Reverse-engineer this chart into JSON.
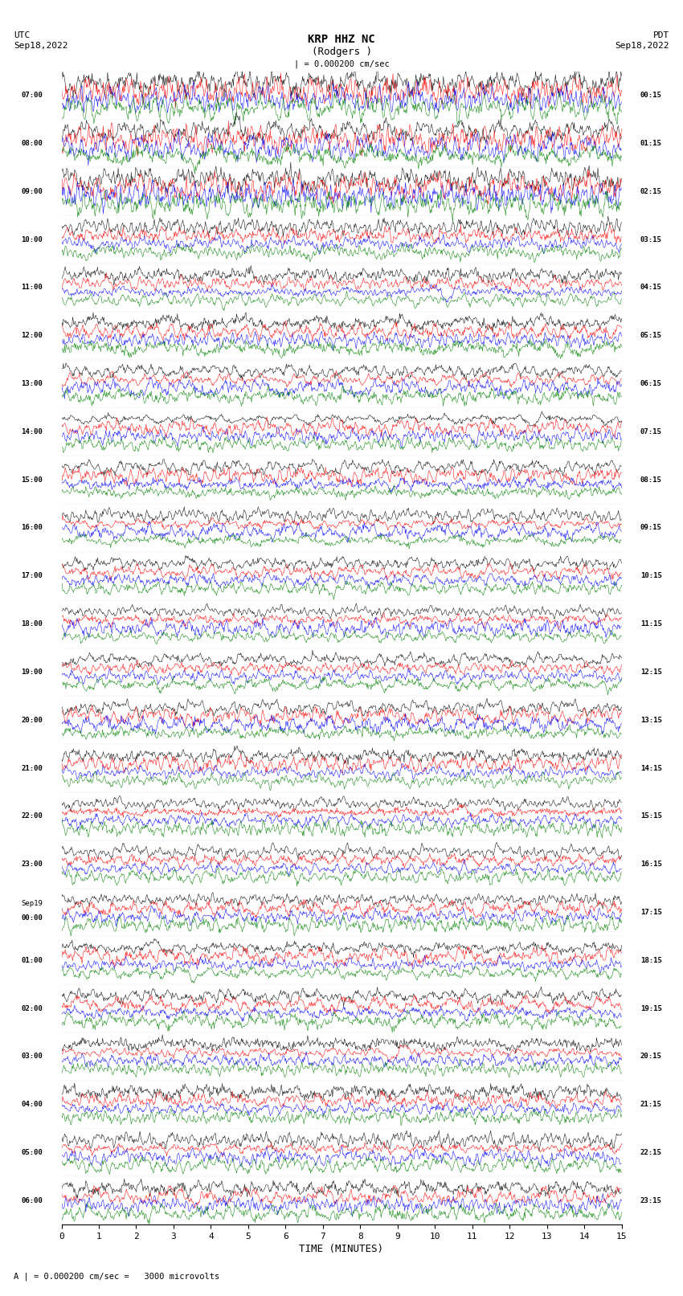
{
  "title_line1": "KRP HHZ NC",
  "title_line2": "(Rodgers )",
  "scale_label": "| = 0.000200 cm/sec",
  "bottom_label": "A | = 0.000200 cm/sec =   3000 microvolts",
  "xlabel": "TIME (MINUTES)",
  "left_header1": "UTC",
  "left_header2": "Sep18,2022",
  "right_header1": "PDT",
  "right_header2": "Sep18,2022",
  "utc_labels": [
    "07:00",
    "08:00",
    "09:00",
    "10:00",
    "11:00",
    "12:00",
    "13:00",
    "14:00",
    "15:00",
    "16:00",
    "17:00",
    "18:00",
    "19:00",
    "20:00",
    "21:00",
    "22:00",
    "23:00",
    "Sep19|00:00",
    "01:00",
    "02:00",
    "03:00",
    "04:00",
    "05:00",
    "06:00"
  ],
  "pdt_labels": [
    "00:15",
    "01:15",
    "02:15",
    "03:15",
    "04:15",
    "05:15",
    "06:15",
    "07:15",
    "08:15",
    "09:15",
    "10:15",
    "11:15",
    "12:15",
    "13:15",
    "14:15",
    "15:15",
    "16:15",
    "17:15",
    "18:15",
    "19:15",
    "20:15",
    "21:15",
    "22:15",
    "23:15"
  ],
  "n_rows": 24,
  "traces_per_row": 4,
  "colors": [
    "black",
    "red",
    "blue",
    "green"
  ],
  "fig_width": 8.5,
  "fig_height": 16.13,
  "bg_color": "white",
  "n_points": 900,
  "x_ticks": [
    0,
    1,
    2,
    3,
    4,
    5,
    6,
    7,
    8,
    9,
    10,
    11,
    12,
    13,
    14,
    15
  ],
  "x_lim": [
    0,
    15
  ]
}
